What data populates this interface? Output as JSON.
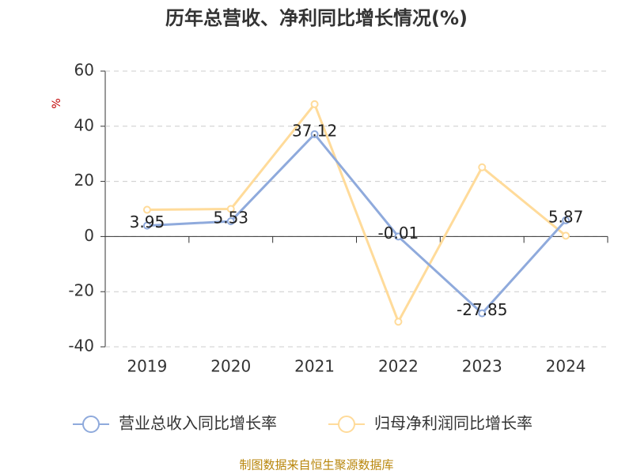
{
  "chart_data": {
    "type": "line",
    "title": "历年总营收、净利同比增长情况(%)",
    "y_label": "%",
    "categories": [
      "2019",
      "2020",
      "2021",
      "2022",
      "2023",
      "2024"
    ],
    "series": [
      {
        "name": "营业总收入同比增长率",
        "color": "#8faadc",
        "values": [
          3.95,
          5.53,
          37.12,
          -0.01,
          -27.85,
          5.87
        ],
        "show_labels": true
      },
      {
        "name": "归母净利润同比增长率",
        "color": "#ffdb9a",
        "values": [
          9.7,
          10,
          48,
          -30.9,
          25.1,
          0.3
        ],
        "show_labels": false
      }
    ],
    "ylim": [
      -40,
      60
    ],
    "yticks": [
      -40,
      -20,
      0,
      20,
      40,
      60
    ],
    "grid": true,
    "source": "制图数据来自恒生聚源数据库"
  }
}
